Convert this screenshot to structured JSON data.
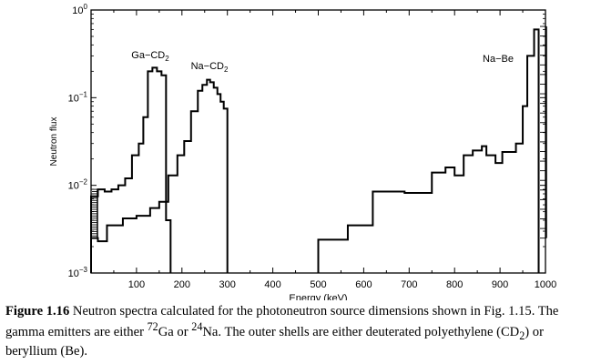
{
  "chart_data": {
    "type": "line",
    "style": "step",
    "title": "",
    "xlabel": "Energy (keV)",
    "ylabel": "Neutron flux",
    "xlim": [
      0,
      1000
    ],
    "ylim": [
      0.001,
      1
    ],
    "yscale": "log",
    "x_ticks": [
      "100",
      "200",
      "300",
      "400",
      "500",
      "600",
      "700",
      "800",
      "900",
      "1000"
    ],
    "y_ticks": [
      {
        "base": "10",
        "exp": "0"
      },
      {
        "base": "10",
        "exp": "−1"
      },
      {
        "base": "10",
        "exp": "−2"
      },
      {
        "base": "10",
        "exp": "−3"
      }
    ],
    "series": [
      {
        "name": "Ga-CD2",
        "label_main": "Ga−CD",
        "label_sub": "2",
        "edges": [
          0,
          15,
          30,
          45,
          60,
          75,
          90,
          105,
          115,
          125,
          135,
          145,
          155,
          165,
          175
        ],
        "values": [
          0.0075,
          0.009,
          0.0085,
          0.009,
          0.01,
          0.012,
          0.022,
          0.03,
          0.06,
          0.2,
          0.22,
          0.2,
          0.18,
          0.004
        ]
      },
      {
        "name": "Na-CD2",
        "label_main": "Na−CD",
        "label_sub": "2",
        "edges": [
          0,
          15,
          35,
          70,
          100,
          130,
          150,
          170,
          190,
          205,
          220,
          235,
          245,
          255,
          262,
          270,
          278,
          285,
          292,
          300
        ],
        "values": [
          0.0025,
          0.0023,
          0.0035,
          0.0042,
          0.0045,
          0.0055,
          0.0065,
          0.013,
          0.022,
          0.032,
          0.07,
          0.12,
          0.14,
          0.16,
          0.15,
          0.13,
          0.11,
          0.09,
          0.075
        ]
      },
      {
        "name": "Na-Be",
        "label_main": "Na−Be",
        "label_sub": "",
        "edges": [
          500,
          565,
          620,
          690,
          750,
          780,
          800,
          820,
          840,
          860,
          870,
          890,
          905,
          920,
          935,
          950,
          960,
          975,
          985
        ],
        "values": [
          0.0024,
          0.0035,
          0.0085,
          0.0082,
          0.014,
          0.016,
          0.013,
          0.022,
          0.025,
          0.028,
          0.022,
          0.018,
          0.024,
          0.024,
          0.03,
          0.08,
          0.3,
          0.6
        ]
      }
    ],
    "decorations": {
      "start_bars_ga": {
        "x": 2,
        "low": 0.0025,
        "high": 0.009
      },
      "end_bars_be": {
        "x": 988,
        "low": 0.0025,
        "high": 0.65
      }
    }
  },
  "caption": {
    "label": "Figure 1.16",
    "t1": " Neutron spectra calculated for the photoneutron source dimensions shown in Fig. 1.15. The gamma emitters are either ",
    "sup1": "72",
    "t2": "Ga or ",
    "sup2": "24",
    "t3": "Na. The outer shells are either deuterated polyethylene (CD",
    "sub1": "2",
    "t4": ") or beryllium (Be)."
  }
}
